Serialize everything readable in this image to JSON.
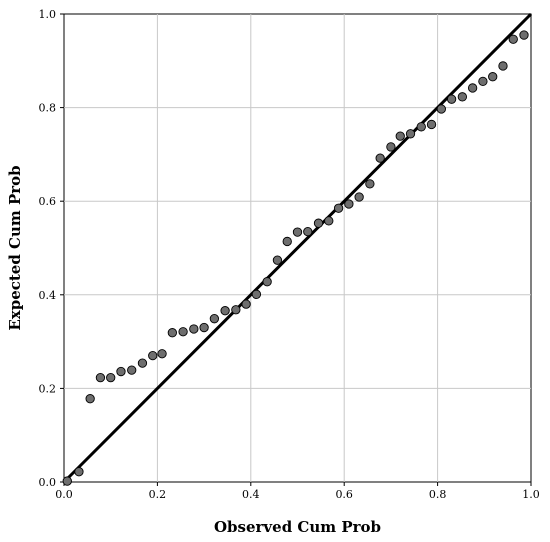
{
  "chart_data": {
    "type": "scatter",
    "title": "",
    "xlabel": "Observed Cum Prob",
    "ylabel": "Expected Cum Prob",
    "xlim": [
      0,
      1
    ],
    "ylim": [
      0,
      1
    ],
    "xticks": [
      "0.0",
      "0.2",
      "0.4",
      "0.6",
      "0.8",
      "1.0"
    ],
    "yticks": [
      "0.0",
      "0.2",
      "0.4",
      "0.6",
      "0.8",
      "1.0"
    ],
    "grid": true,
    "reference_line": {
      "from": [
        0,
        0
      ],
      "to": [
        1,
        1
      ]
    },
    "marker_color": "#6e6e6e",
    "line_color": "#000000",
    "points": [
      [
        0.007,
        0.002
      ],
      [
        0.032,
        0.022
      ],
      [
        0.056,
        0.178
      ],
      [
        0.078,
        0.223
      ],
      [
        0.1,
        0.223
      ],
      [
        0.122,
        0.236
      ],
      [
        0.145,
        0.239
      ],
      [
        0.168,
        0.254
      ],
      [
        0.19,
        0.27
      ],
      [
        0.21,
        0.274
      ],
      [
        0.232,
        0.319
      ],
      [
        0.255,
        0.321
      ],
      [
        0.278,
        0.327
      ],
      [
        0.3,
        0.33
      ],
      [
        0.322,
        0.349
      ],
      [
        0.345,
        0.366
      ],
      [
        0.368,
        0.368
      ],
      [
        0.39,
        0.38
      ],
      [
        0.412,
        0.401
      ],
      [
        0.435,
        0.428
      ],
      [
        0.457,
        0.474
      ],
      [
        0.478,
        0.514
      ],
      [
        0.5,
        0.534
      ],
      [
        0.522,
        0.535
      ],
      [
        0.545,
        0.553
      ],
      [
        0.567,
        0.558
      ],
      [
        0.588,
        0.585
      ],
      [
        0.61,
        0.594
      ],
      [
        0.632,
        0.609
      ],
      [
        0.655,
        0.637
      ],
      [
        0.677,
        0.692
      ],
      [
        0.7,
        0.716
      ],
      [
        0.72,
        0.739
      ],
      [
        0.742,
        0.744
      ],
      [
        0.765,
        0.759
      ],
      [
        0.787,
        0.764
      ],
      [
        0.808,
        0.797
      ],
      [
        0.83,
        0.818
      ],
      [
        0.853,
        0.823
      ],
      [
        0.875,
        0.842
      ],
      [
        0.897,
        0.856
      ],
      [
        0.918,
        0.866
      ],
      [
        0.94,
        0.889
      ],
      [
        0.962,
        0.946
      ],
      [
        0.985,
        0.955
      ]
    ]
  }
}
